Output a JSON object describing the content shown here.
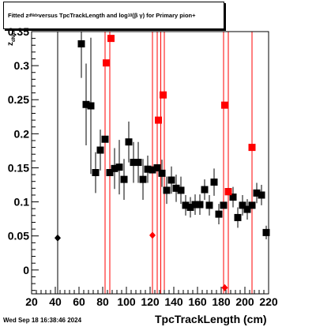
{
  "title": {
    "part1": "Fitted  z",
    "sub1": "dNdx",
    "part2": "  versus  TpcTrackLength and log",
    "sub2": "10",
    "part3": " (β  γ) for Primary pion+"
  },
  "ylabel": {
    "main": "z",
    "sub": "dNdx"
  },
  "xlabel": "TpcTrackLength (cm)",
  "timestamp": "Wed Sep 18 16:38:46 2024",
  "colors": {
    "black_series": "#000000",
    "red_series": "#ff0000"
  },
  "chart_data": {
    "type": "scatter",
    "title": "Fitted z dNdx versus TpcTrackLength and log10 (β γ) for Primary pion+",
    "xlabel": "TpcTrackLength (cm)",
    "ylabel": "z dNdx",
    "xlim": [
      20,
      220
    ],
    "ylim": [
      -0.035,
      0.35
    ],
    "x_ticks": [
      20,
      40,
      60,
      80,
      100,
      120,
      140,
      160,
      180,
      200,
      220
    ],
    "x_tick_labels": [
      "20",
      "40",
      "60",
      "80",
      "100",
      "120",
      "140",
      "160",
      "180",
      "200",
      "220"
    ],
    "y_ticks": [
      0,
      0.05,
      0.1,
      0.15,
      0.2,
      0.25,
      0.3,
      0.35
    ],
    "y_tick_labels": [
      "0",
      "0.05",
      "0.1",
      "0.15",
      "0.2",
      "0.25",
      "0.3",
      "0.35"
    ],
    "grid": false,
    "series": [
      {
        "marker": "square",
        "color": "#000000",
        "points": [
          {
            "x": 62,
            "y": 0.332,
            "err": 0.05
          },
          {
            "x": 66,
            "y": 0.243,
            "err": 0.06
          },
          {
            "x": 70,
            "y": 0.241,
            "err": 0.1
          },
          {
            "x": 74,
            "y": 0.143,
            "err": 0.03
          },
          {
            "x": 78,
            "y": 0.176,
            "err": 0.03
          },
          {
            "x": 82,
            "y": 0.192,
            "err": 0.06
          },
          {
            "x": 86,
            "y": 0.143,
            "err": 0.02
          },
          {
            "x": 90,
            "y": 0.149,
            "err": 0.03
          },
          {
            "x": 94,
            "y": 0.151,
            "err": 0.04
          },
          {
            "x": 98,
            "y": 0.133,
            "err": 0.03
          },
          {
            "x": 102,
            "y": 0.188,
            "err": 0.03
          },
          {
            "x": 106,
            "y": 0.158,
            "err": 0.03
          },
          {
            "x": 110,
            "y": 0.158,
            "err": 0.03
          },
          {
            "x": 114,
            "y": 0.133,
            "err": 0.03
          },
          {
            "x": 118,
            "y": 0.148,
            "err": 0.02
          },
          {
            "x": 122,
            "y": 0.147,
            "err": 0.02
          },
          {
            "x": 126,
            "y": 0.15,
            "err": 0.02
          },
          {
            "x": 130,
            "y": 0.142,
            "err": 0.02
          },
          {
            "x": 134,
            "y": 0.117,
            "err": 0.02
          },
          {
            "x": 138,
            "y": 0.132,
            "err": 0.02
          },
          {
            "x": 142,
            "y": 0.12,
            "err": 0.02
          },
          {
            "x": 146,
            "y": 0.117,
            "err": 0.02
          },
          {
            "x": 150,
            "y": 0.095,
            "err": 0.015
          },
          {
            "x": 154,
            "y": 0.092,
            "err": 0.015
          },
          {
            "x": 158,
            "y": 0.096,
            "err": 0.015
          },
          {
            "x": 162,
            "y": 0.096,
            "err": 0.015
          },
          {
            "x": 166,
            "y": 0.118,
            "err": 0.015
          },
          {
            "x": 170,
            "y": 0.095,
            "err": 0.015
          },
          {
            "x": 174,
            "y": 0.129,
            "err": 0.02
          },
          {
            "x": 178,
            "y": 0.082,
            "err": 0.015
          },
          {
            "x": 182,
            "y": 0.095,
            "err": 0.015
          },
          {
            "x": 186,
            "y": 0.115,
            "err": 0.015
          },
          {
            "x": 190,
            "y": 0.107,
            "err": 0.015
          },
          {
            "x": 194,
            "y": 0.077,
            "err": 0.015
          },
          {
            "x": 198,
            "y": 0.095,
            "err": 0.015
          },
          {
            "x": 202,
            "y": 0.089,
            "err": 0.015
          },
          {
            "x": 206,
            "y": 0.095,
            "err": 0.015
          },
          {
            "x": 210,
            "y": 0.113,
            "err": 0.015
          },
          {
            "x": 214,
            "y": 0.11,
            "err": 0.015
          },
          {
            "x": 218,
            "y": 0.055,
            "err": 0.01
          }
        ]
      },
      {
        "marker": "square",
        "color": "#ff0000",
        "points": [
          {
            "x": 83,
            "y": 0.304
          },
          {
            "x": 87,
            "y": 0.34
          },
          {
            "x": 127,
            "y": 0.22
          },
          {
            "x": 131,
            "y": 0.257
          },
          {
            "x": 183,
            "y": 0.242
          },
          {
            "x": 186,
            "y": 0.115
          },
          {
            "x": 206,
            "y": 0.18
          }
        ],
        "full_height_error_bars_x": [
          82,
          86,
          122,
          126,
          129,
          132,
          182,
          186,
          206
        ]
      },
      {
        "marker": "diamond",
        "color": "#ff0000",
        "points": [
          {
            "x": 122,
            "y": 0.051
          },
          {
            "x": 183,
            "y": -0.026
          }
        ]
      },
      {
        "marker": "diamond",
        "color": "#000000",
        "points": [
          {
            "x": 42,
            "y": 0.047
          }
        ],
        "full_height_error_bars_x": [
          42
        ]
      }
    ]
  }
}
